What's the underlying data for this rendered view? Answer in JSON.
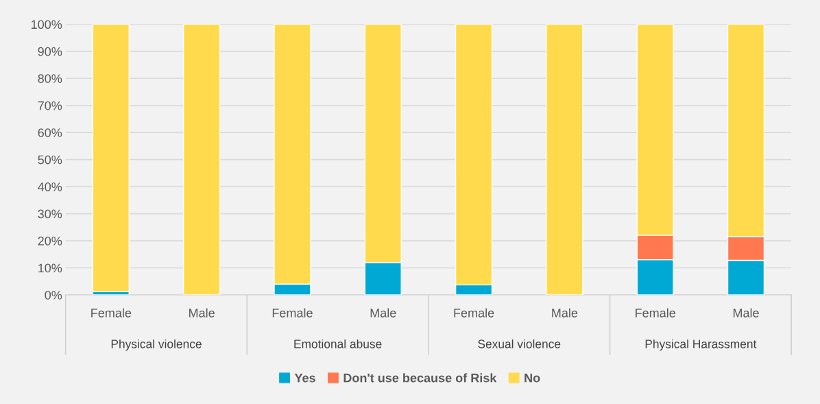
{
  "chart_data": {
    "type": "bar",
    "stacked": true,
    "categories": [
      "Female",
      "Male",
      "Female",
      "Male",
      "Female",
      "Male",
      "Female",
      "Male"
    ],
    "annotations": [
      "Physical violence",
      "Emotional abuse",
      "Sexual violence",
      "Physical Harassment"
    ],
    "series": [
      {
        "name": "Yes",
        "color": "#00a9d4",
        "values": [
          1.2,
          0,
          4,
          12,
          3.7,
          0,
          13,
          12.8
        ]
      },
      {
        "name": "Don't use because of Risk",
        "color": "#ff7850",
        "values": [
          0,
          0,
          0,
          0,
          0,
          0,
          9,
          8.8
        ]
      },
      {
        "name": "No",
        "color": "#ffda4c",
        "values": [
          98.8,
          100,
          96,
          88,
          96.3,
          100,
          78,
          78.4
        ]
      }
    ],
    "ylim": [
      0,
      100
    ],
    "yticks": [
      {
        "value": 0,
        "label": "0%"
      },
      {
        "value": 10,
        "label": "10%"
      },
      {
        "value": 20,
        "label": "20%"
      },
      {
        "value": 30,
        "label": "30%"
      },
      {
        "value": 40,
        "label": "40%"
      },
      {
        "value": 50,
        "label": "50%"
      },
      {
        "value": 60,
        "label": "60%"
      },
      {
        "value": 70,
        "label": "70%"
      },
      {
        "value": 80,
        "label": "80%"
      },
      {
        "value": 90,
        "label": "90%"
      },
      {
        "value": 100,
        "label": "100%"
      }
    ],
    "grid": "y",
    "legend": "bottom"
  }
}
